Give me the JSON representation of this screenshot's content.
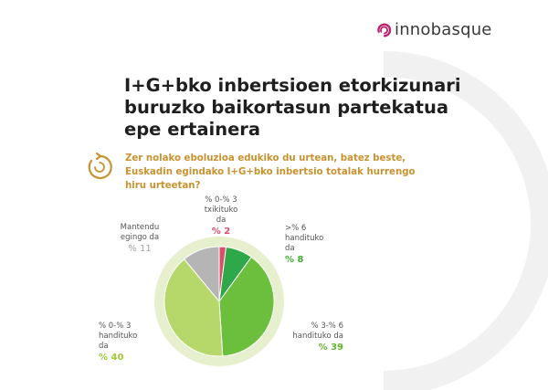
{
  "brand": {
    "name": "innobasque",
    "accent": "#b8236b"
  },
  "title": "I+G+bko inbertsioen etorkizunari buruzko baikortasun partekatua epe ertainera",
  "question": "Zer nolako eboluzioa edukiko du urtean, batez beste, Euskadin egindako I+G+bko inbertsio totalak hurrengo hiru urteetan?",
  "chart_data": {
    "type": "pie",
    "title": "",
    "slices": [
      {
        "label": "% 0-% 3 txikituko da",
        "value": 2,
        "display": "% 2",
        "color": "#d94e68"
      },
      {
        "label": ">% 6 handituko da",
        "value": 8,
        "display": "% 8",
        "color": "#2fa84a"
      },
      {
        "label": "% 3-% 6 handituko da",
        "value": 39,
        "display": "% 39",
        "color": "#6cbf3c"
      },
      {
        "label": "% 0-% 3 handituko da",
        "value": 40,
        "display": "% 40",
        "color": "#b6d86a"
      },
      {
        "label": "Mantendu egingo da",
        "value": 11,
        "display": "% 11",
        "color": "#b5b5b5"
      }
    ]
  },
  "labels": {
    "s2": {
      "line1": "% 0-% 3",
      "line2": "txikituko da",
      "pct": "% 2"
    },
    "s8": {
      "line1": ">% 6",
      "line2": "handituko da",
      "pct": "% 8"
    },
    "s39": {
      "line1": "% 3-% 6",
      "line2": "handituko da",
      "pct": "% 39"
    },
    "s40": {
      "line1": "% 0-% 3",
      "line2": "handituko da",
      "pct": "% 40"
    },
    "s11": {
      "line1": "Mantendu",
      "line2": "egingo da",
      "pct": "% 11"
    }
  },
  "colors": {
    "title": "#1f1f1f",
    "question": "#c8922f",
    "halo": "#e6f0cf",
    "bg_arc": "#f1f1f1"
  }
}
